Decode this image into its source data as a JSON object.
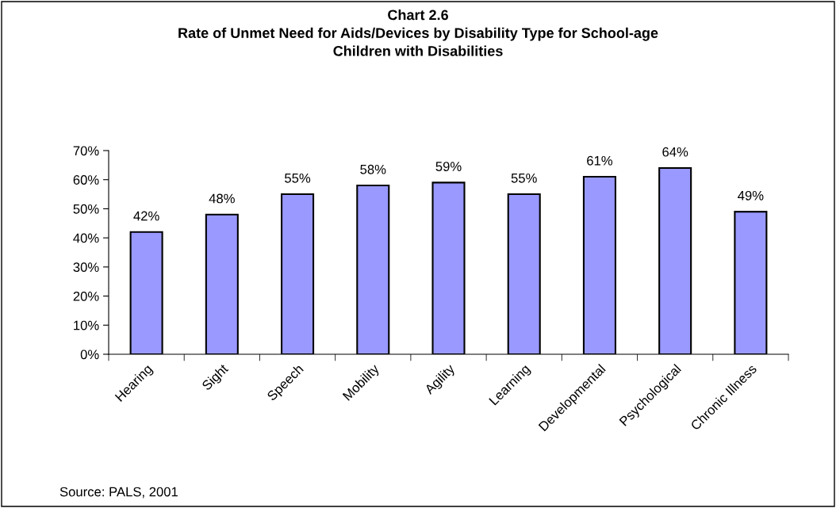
{
  "chart_data": {
    "type": "bar",
    "title": "Chart 2.6\nRate of Unmet Need for Aids/Devices by Disability Type for School-age\nChildren with Disabilities",
    "categories": [
      "Hearing",
      "Sight",
      "Speech",
      "Mobility",
      "Agility",
      "Learning",
      "Developmental",
      "Psychological",
      "Chronic Illness"
    ],
    "values": [
      42,
      48,
      55,
      58,
      59,
      55,
      61,
      64,
      49
    ],
    "value_labels": [
      "42%",
      "48%",
      "55%",
      "58%",
      "59%",
      "55%",
      "61%",
      "64%",
      "49%"
    ],
    "color": "#9999ff",
    "ylim": [
      0,
      70
    ],
    "yticks": [
      {
        "value": 0,
        "label": "0%"
      },
      {
        "value": 10,
        "label": "10%"
      },
      {
        "value": 20,
        "label": "20%"
      },
      {
        "value": 30,
        "label": "30%"
      },
      {
        "value": 40,
        "label": "40%"
      },
      {
        "value": 50,
        "label": "50%"
      },
      {
        "value": 60,
        "label": "60%"
      },
      {
        "value": 70,
        "label": "70%"
      }
    ],
    "grid": false,
    "legend": false,
    "annotations": [
      "Source: PALS, 2001"
    ]
  }
}
